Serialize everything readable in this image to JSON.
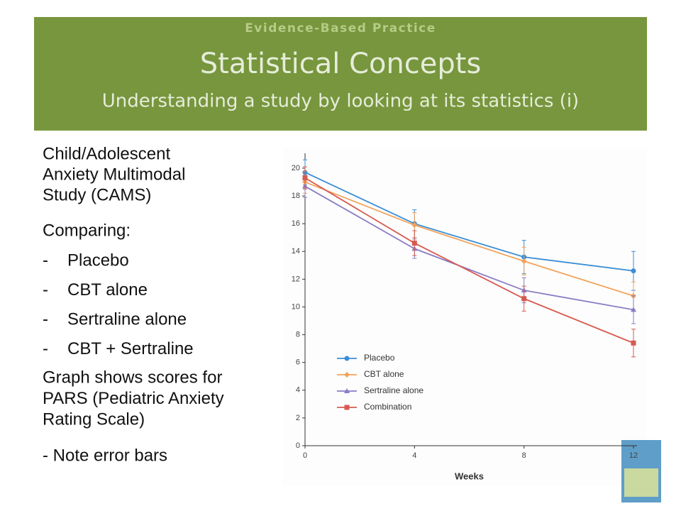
{
  "header": {
    "kicker": "Evidence-Based Practice",
    "title": "Statistical Concepts",
    "subtitle": "Understanding a study by looking at its statistics (i)"
  },
  "body": {
    "intro": [
      "Child/Adolescent",
      "Anxiety Multimodal",
      "Study (CAMS)"
    ],
    "comparing": "Comparing:",
    "bullets": [
      {
        "marker": "-",
        "text": "Placebo"
      },
      {
        "marker": "-",
        "text": "CBT alone"
      },
      {
        "marker": "-",
        "text": "Sertraline alone"
      },
      {
        "marker": "-",
        "text": "CBT + Sertraline"
      }
    ],
    "graph_note": [
      "Graph shows scores for",
      "PARS (Pediatric Anxiety",
      "Rating Scale)"
    ],
    "note": "- Note error bars"
  },
  "chart_data": {
    "type": "line",
    "xlabel": "Weeks",
    "x": [
      0,
      4,
      8,
      12
    ],
    "xlim": [
      0,
      12
    ],
    "xticks": [
      0,
      4,
      8,
      12
    ],
    "ylim": [
      0,
      20
    ],
    "yticks": [
      0,
      2,
      4,
      6,
      8,
      10,
      12,
      14,
      16,
      18,
      20
    ],
    "legend": "lower left",
    "series": [
      {
        "name": "Placebo",
        "color": "#3b8ed6",
        "values": [
          19.7,
          16.0,
          13.6,
          12.6
        ],
        "errors": [
          0.9,
          1.0,
          1.2,
          1.4
        ]
      },
      {
        "name": "CBT alone",
        "color": "#f2a35c",
        "values": [
          19.0,
          15.9,
          13.3,
          10.8
        ],
        "errors": [
          0.8,
          0.9,
          1.0,
          1.0
        ]
      },
      {
        "name": "Sertraline alone",
        "color": "#8a7cc4",
        "values": [
          18.7,
          14.2,
          11.2,
          9.8
        ],
        "errors": [
          0.8,
          0.7,
          0.9,
          1.0
        ]
      },
      {
        "name": "Combination",
        "color": "#d65a4f",
        "values": [
          19.3,
          14.6,
          10.6,
          7.4
        ],
        "errors": [
          0.8,
          0.9,
          0.9,
          1.0
        ]
      }
    ]
  }
}
